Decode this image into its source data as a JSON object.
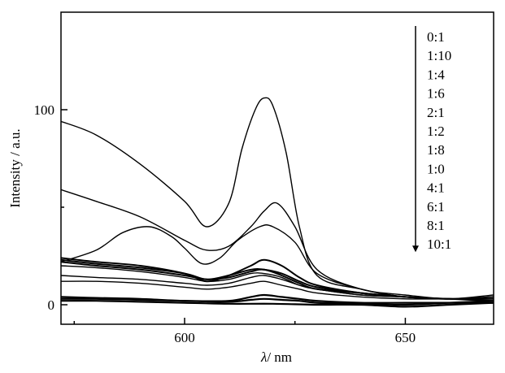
{
  "chart_data": {
    "type": "line",
    "xlabel_symbol": "λ",
    "xlabel_unit": "/ nm",
    "ylabel": "Intensity / a.u.",
    "xlim": [
      572,
      670
    ],
    "ylim": [
      -10,
      150
    ],
    "xticks": [
      600,
      650
    ],
    "yticks": [
      0,
      100
    ],
    "grid": false,
    "legend_position": "top-right",
    "legend_arrow": "down",
    "legend": [
      "0:1",
      "1:10",
      "1:4",
      "1:6",
      "2:1",
      "1:2",
      "1:8",
      "1:0",
      "4:1",
      "6:1",
      "8:1",
      "10:1"
    ],
    "series": [
      {
        "x": [
          572,
          580,
          590,
          600,
          605,
          610,
          613,
          616,
          618,
          620,
          623,
          626,
          630,
          640,
          650,
          660,
          670
        ],
        "y": [
          94,
          87,
          72,
          53,
          40,
          52,
          80,
          100,
          106,
          102,
          78,
          40,
          15,
          8,
          4,
          3,
          5
        ]
      },
      {
        "x": [
          572,
          580,
          590,
          600,
          605,
          610,
          615,
          618,
          621,
          625,
          630,
          640,
          650,
          660,
          670
        ],
        "y": [
          59,
          53,
          45,
          33,
          28,
          30,
          40,
          48,
          52,
          40,
          18,
          8,
          5,
          3,
          4
        ]
      },
      {
        "x": [
          572,
          580,
          586,
          592,
          597,
          600,
          604,
          608,
          612,
          617,
          620,
          625,
          630,
          640,
          650,
          660,
          670
        ],
        "y": [
          22,
          28,
          37,
          40,
          35,
          29,
          21,
          24,
          33,
          40,
          40,
          32,
          16,
          8,
          4,
          3,
          3
        ]
      },
      {
        "x": [
          572,
          580,
          590,
          600,
          605,
          610,
          615,
          618,
          622,
          626,
          630,
          640,
          650,
          660,
          670
        ],
        "y": [
          24,
          22,
          20,
          16,
          12,
          15,
          20,
          23,
          20,
          14,
          10,
          6,
          4,
          3,
          3
        ]
      },
      {
        "x": [
          572,
          580,
          590,
          600,
          605,
          610,
          615,
          618,
          622,
          626,
          630,
          640,
          650,
          660,
          670
        ],
        "y": [
          23,
          21,
          19,
          16,
          13,
          15,
          18,
          18,
          16,
          12,
          9,
          6,
          4,
          3,
          2
        ]
      },
      {
        "x": [
          572,
          580,
          590,
          600,
          605,
          610,
          615,
          618,
          622,
          626,
          630,
          640,
          650,
          660,
          670
        ],
        "y": [
          22,
          20,
          18,
          15,
          13,
          14,
          17,
          18,
          15,
          11,
          8,
          6,
          4,
          3,
          4
        ]
      },
      {
        "x": [
          572,
          580,
          590,
          600,
          605,
          610,
          615,
          618,
          622,
          626,
          630,
          640,
          650,
          660,
          670
        ],
        "y": [
          20,
          19,
          17,
          14,
          12,
          13,
          16,
          16,
          14,
          10,
          8,
          5,
          4,
          3,
          3
        ]
      },
      {
        "x": [
          572,
          580,
          590,
          600,
          605,
          610,
          615,
          618,
          622,
          626,
          630,
          640,
          650,
          660,
          670
        ],
        "y": [
          15,
          14,
          13,
          11,
          10,
          11,
          14,
          15,
          13,
          10,
          8,
          5,
          4,
          3,
          3
        ]
      },
      {
        "x": [
          572,
          580,
          590,
          600,
          605,
          610,
          615,
          618,
          622,
          626,
          630,
          640,
          650,
          660,
          670
        ],
        "y": [
          12,
          12,
          11,
          9,
          8,
          9,
          11,
          12,
          10,
          8,
          6,
          4,
          3,
          3,
          3
        ]
      },
      {
        "x": [
          572,
          580,
          590,
          600,
          610,
          615,
          618,
          622,
          626,
          630,
          640,
          650,
          660,
          670
        ],
        "y": [
          4,
          3.5,
          3,
          2,
          2,
          4,
          5,
          4,
          3,
          2,
          1,
          1,
          1,
          1
        ]
      },
      {
        "x": [
          572,
          580,
          590,
          600,
          610,
          615,
          618,
          622,
          626,
          630,
          640,
          650,
          660,
          670
        ],
        "y": [
          3,
          3,
          2.5,
          2,
          1.5,
          2.5,
          3,
          2.5,
          2,
          1,
          0.5,
          0,
          1,
          2
        ]
      },
      {
        "x": [
          572,
          580,
          590,
          600,
          610,
          620,
          630,
          640,
          650,
          660,
          670
        ],
        "y": [
          2,
          2,
          1.5,
          1,
          0.5,
          0.5,
          0,
          0,
          -1,
          0,
          1
        ]
      }
    ]
  }
}
